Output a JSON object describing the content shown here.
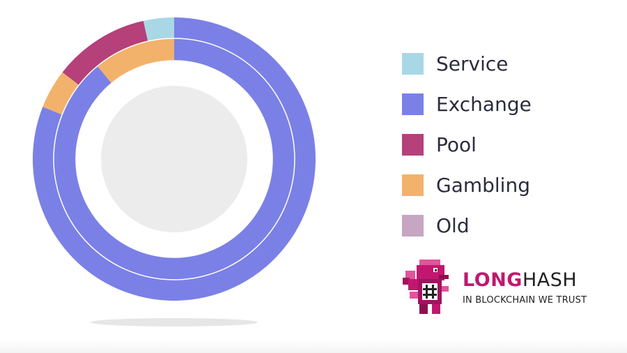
{
  "chart_data": {
    "type": "pie",
    "style": "nested-donut",
    "rings": [
      {
        "ring": "outer",
        "slices": [
          {
            "category": "Service",
            "value": 3.5
          },
          {
            "category": "Pool",
            "value": 11
          },
          {
            "category": "Gambling",
            "value": 4.5
          },
          {
            "category": "Exchange",
            "value": 81
          }
        ]
      },
      {
        "ring": "inner",
        "slices": [
          {
            "category": "Gambling",
            "value": 11
          },
          {
            "category": "Exchange",
            "value": 89
          }
        ]
      }
    ],
    "legend": [
      {
        "label": "Service",
        "color": "#a8d8e6"
      },
      {
        "label": "Exchange",
        "color": "#7b80e6"
      },
      {
        "label": "Pool",
        "color": "#b5407a"
      },
      {
        "label": "Gambling",
        "color": "#f3b26b"
      },
      {
        "label": "Old",
        "color": "#c6a6c2"
      }
    ],
    "legend_position": "right",
    "center_color": "#ececec"
  },
  "logo": {
    "brand_left": "LONG",
    "brand_right": "HASH",
    "tagline": "IN BLOCKCHAIN WE TRUST",
    "accent_color": "#c2176e"
  }
}
